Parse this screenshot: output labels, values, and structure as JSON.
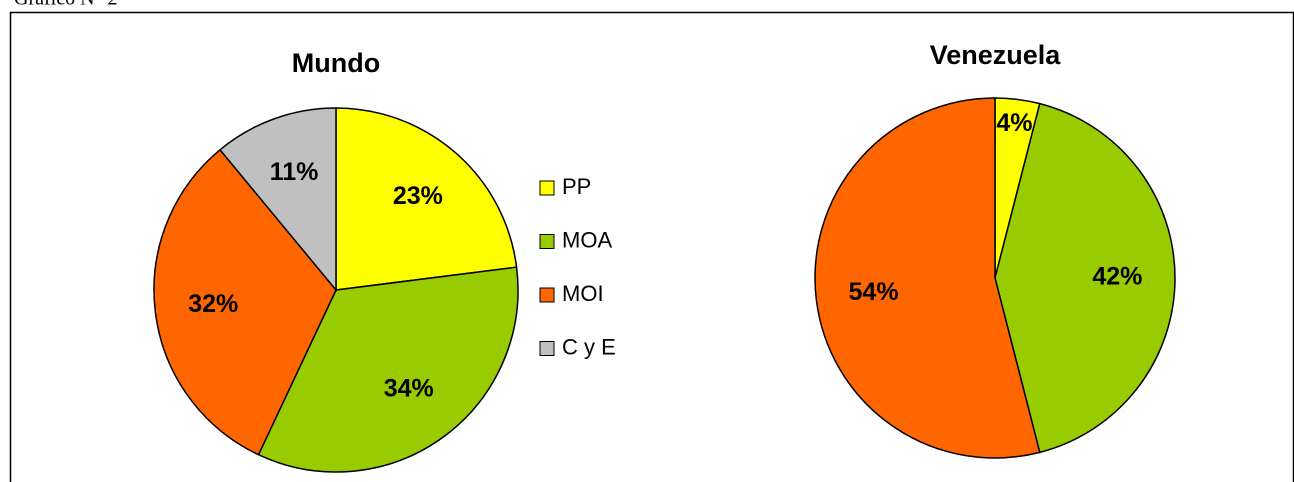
{
  "caption": "Gráfico N° 2",
  "chart_data": [
    {
      "type": "pie",
      "title": "Mundo",
      "categories": [
        "PP",
        "MOA",
        "MOI",
        "C y E"
      ],
      "values": [
        23,
        34,
        32,
        11
      ],
      "value_labels": [
        "23%",
        "34%",
        "32%",
        "11%"
      ],
      "colors": [
        "#FFFF00",
        "#99CC00",
        "#FF6600",
        "#C0C0C0"
      ],
      "legend": "right"
    },
    {
      "type": "pie",
      "title": "Venezuela",
      "categories": [
        "PP",
        "MOA",
        "MOI"
      ],
      "values": [
        4,
        42,
        54
      ],
      "value_labels": [
        "4%",
        "42%",
        "54%"
      ],
      "colors": [
        "#FFFF00",
        "#99CC00",
        "#FF6600"
      ]
    }
  ]
}
